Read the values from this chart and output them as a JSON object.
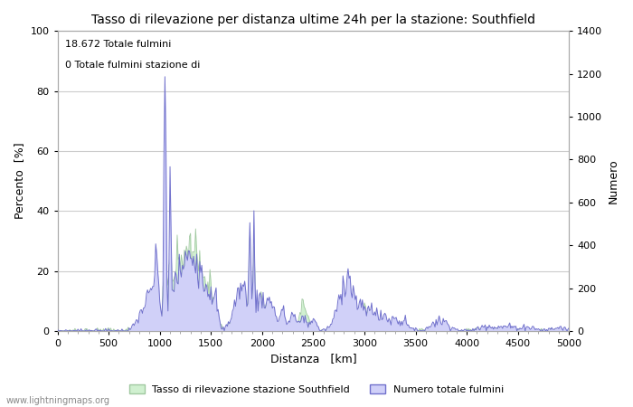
{
  "title": "Tasso di rilevazione per distanza ultime 24h per la stazione: Southfield",
  "xlabel": "Distanza   [km]",
  "ylabel_left": "Percento  [%]",
  "ylabel_right": "Numero",
  "xlim": [
    0,
    5000
  ],
  "ylim_left": [
    0,
    100
  ],
  "ylim_right": [
    0,
    1400
  ],
  "xticks": [
    0,
    500,
    1000,
    1500,
    2000,
    2500,
    3000,
    3500,
    4000,
    4500,
    5000
  ],
  "yticks_left": [
    0,
    20,
    40,
    60,
    80,
    100
  ],
  "yticks_right": [
    0,
    200,
    400,
    600,
    800,
    1000,
    1200,
    1400
  ],
  "annotation_line1": "18.672 Totale fulmini",
  "annotation_line2": "0 Totale fulmini stazione di",
  "legend_label1": "Tasso di rilevazione stazione Southfield",
  "legend_label2": "Numero totale fulmini",
  "watermark": "www.lightningmaps.org",
  "fill_green_color": "#d0f0d0",
  "fill_green_edge": "#a0c8a0",
  "fill_blue_color": "#d0d0f8",
  "line_blue_color": "#7070cc",
  "background_color": "#ffffff",
  "grid_color": "#cccccc"
}
